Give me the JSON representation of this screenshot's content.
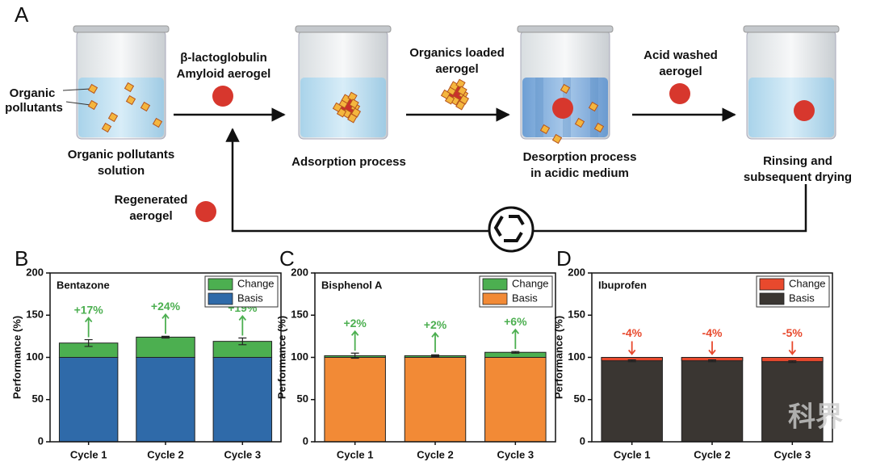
{
  "diagram": {
    "panel": "A",
    "pollutants": [
      "Organic",
      "pollutants"
    ],
    "solution": [
      "Organic pollutants",
      "solution"
    ],
    "aerogel": [
      "β-lactoglobulin",
      "Amyloid aerogel"
    ],
    "adsorption": [
      "Adsorption process"
    ],
    "loaded": [
      "Organics loaded",
      "aerogel"
    ],
    "desorption": [
      "Desorption process",
      "in acidic medium"
    ],
    "washed": [
      "Acid washed",
      "aerogel"
    ],
    "rinsing": [
      "Rinsing and",
      "subsequent drying"
    ],
    "regenerated": [
      "Regenerated",
      "aerogel"
    ],
    "watermark": "科界"
  },
  "chart_data": [
    {
      "type": "bar",
      "panel": "B",
      "title": "Bentazone",
      "y_label": "Performance (%)",
      "categories": [
        "Cycle 1",
        "Cycle 2",
        "Cycle 3"
      ],
      "series": [
        {
          "name": "Basis",
          "color": "#2f6aa9",
          "values": [
            100,
            100,
            100
          ]
        },
        {
          "name": "Change",
          "color": "#4caf50",
          "values": [
            17,
            24,
            19
          ],
          "value_labels": [
            "+17%",
            "+24%",
            "+19%"
          ],
          "errors": [
            4,
            1,
            4
          ]
        }
      ],
      "stacked": true,
      "ylim": [
        0,
        200
      ],
      "yticks": [
        0,
        50,
        100,
        150,
        200
      ],
      "legend": "upper right"
    },
    {
      "type": "bar",
      "panel": "C",
      "title": "Bisphenol A",
      "y_label": "Performance (%)",
      "categories": [
        "Cycle 1",
        "Cycle 2",
        "Cycle 3"
      ],
      "series": [
        {
          "name": "Basis",
          "color": "#f28a36",
          "values": [
            100,
            100,
            100
          ]
        },
        {
          "name": "Change",
          "color": "#4caf50",
          "values": [
            2,
            2,
            6
          ],
          "value_labels": [
            "+2%",
            "+2%",
            "+6%"
          ],
          "errors": [
            3,
            1,
            1
          ]
        }
      ],
      "stacked": true,
      "ylim": [
        0,
        200
      ],
      "yticks": [
        0,
        50,
        100,
        150,
        200
      ],
      "legend": "upper right"
    },
    {
      "type": "bar",
      "panel": "D",
      "title": "Ibuprofen",
      "y_label": "Performance (%)",
      "categories": [
        "Cycle 1",
        "Cycle 2",
        "Cycle 3"
      ],
      "series": [
        {
          "name": "Basis",
          "color": "#3a3632",
          "values": [
            100,
            100,
            100
          ]
        },
        {
          "name": "Change",
          "color": "#e8492d",
          "values": [
            -4,
            -4,
            -5
          ],
          "value_labels": [
            "-4%",
            "-4%",
            "-5%"
          ],
          "errors": [
            1,
            1,
            1
          ]
        }
      ],
      "stacked": true,
      "ylim": [
        0,
        200
      ],
      "yticks": [
        0,
        50,
        100,
        150,
        200
      ],
      "legend": "upper right"
    }
  ]
}
